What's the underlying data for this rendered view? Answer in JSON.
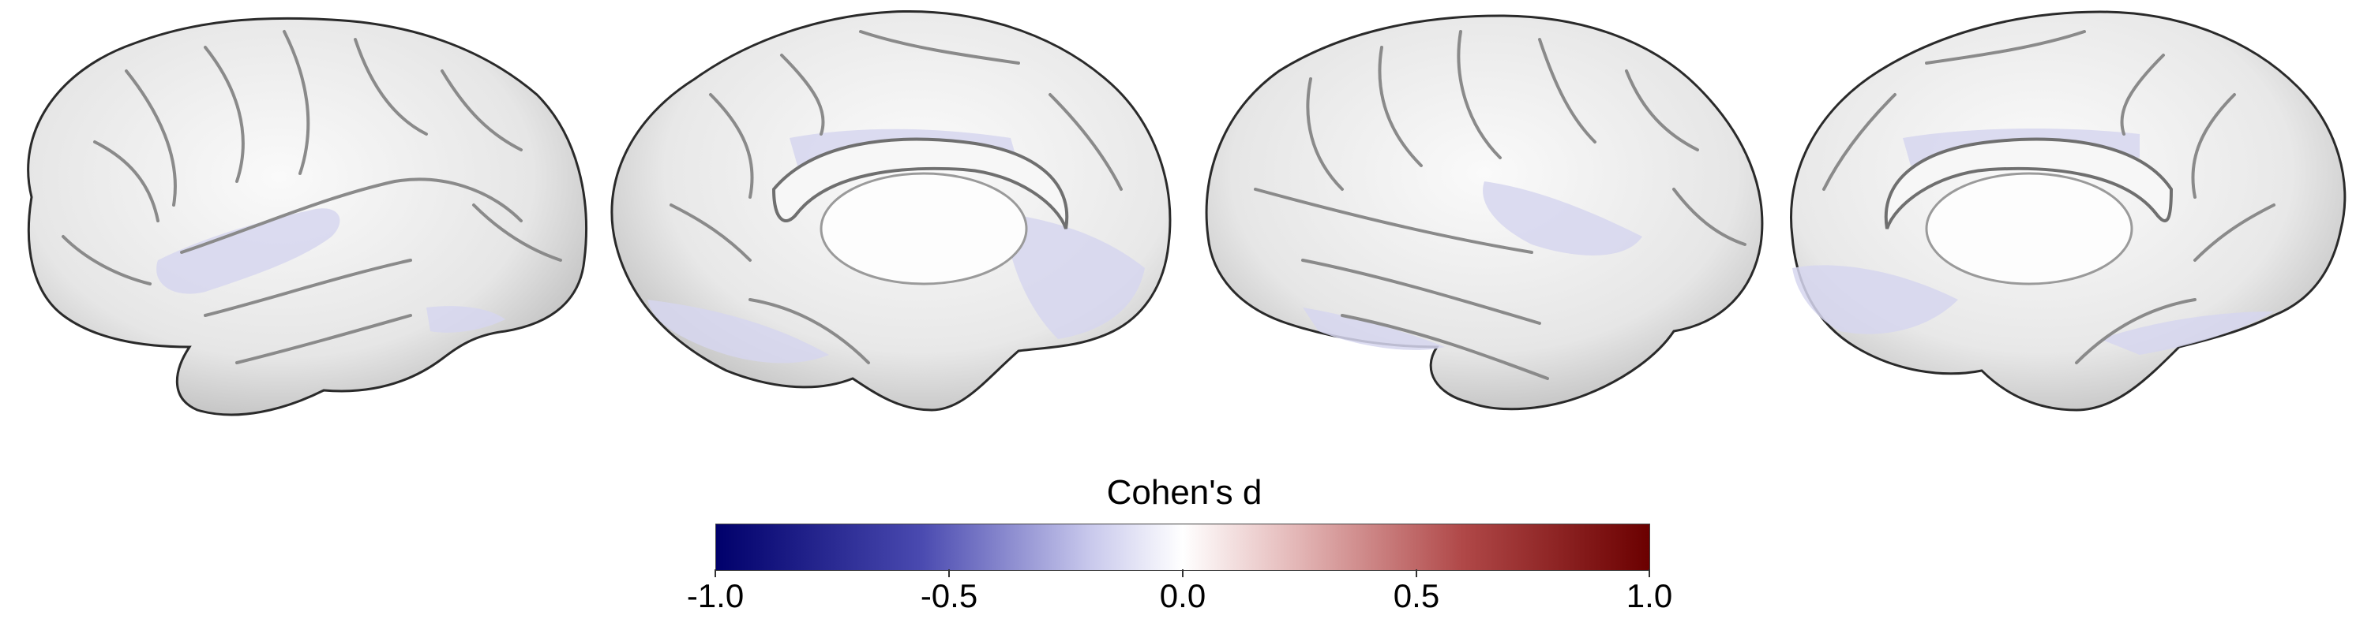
{
  "colorbar": {
    "title": "Cohen's d",
    "ticks": [
      "-1.0",
      "-0.5",
      "0.0",
      "0.5",
      "1.0"
    ],
    "min": -1.0,
    "max": 1.0,
    "colors": {
      "min": "#00006b",
      "low": "#4a4ab0",
      "mid_low": "#c8c8ec",
      "center": "#ffffff",
      "mid_high": "#e4b8b8",
      "high": "#b04848",
      "max": "#6b0000"
    }
  },
  "views": [
    {
      "hemisphere": "left",
      "surface": "lateral"
    },
    {
      "hemisphere": "left",
      "surface": "medial"
    },
    {
      "hemisphere": "right",
      "surface": "lateral"
    },
    {
      "hemisphere": "right",
      "surface": "medial"
    }
  ],
  "colors": {
    "cortex_fill": "#ededed",
    "sulcus": "#8a8a8a",
    "outline": "#2a2a2a",
    "effect_region": "#d6d6ee"
  }
}
